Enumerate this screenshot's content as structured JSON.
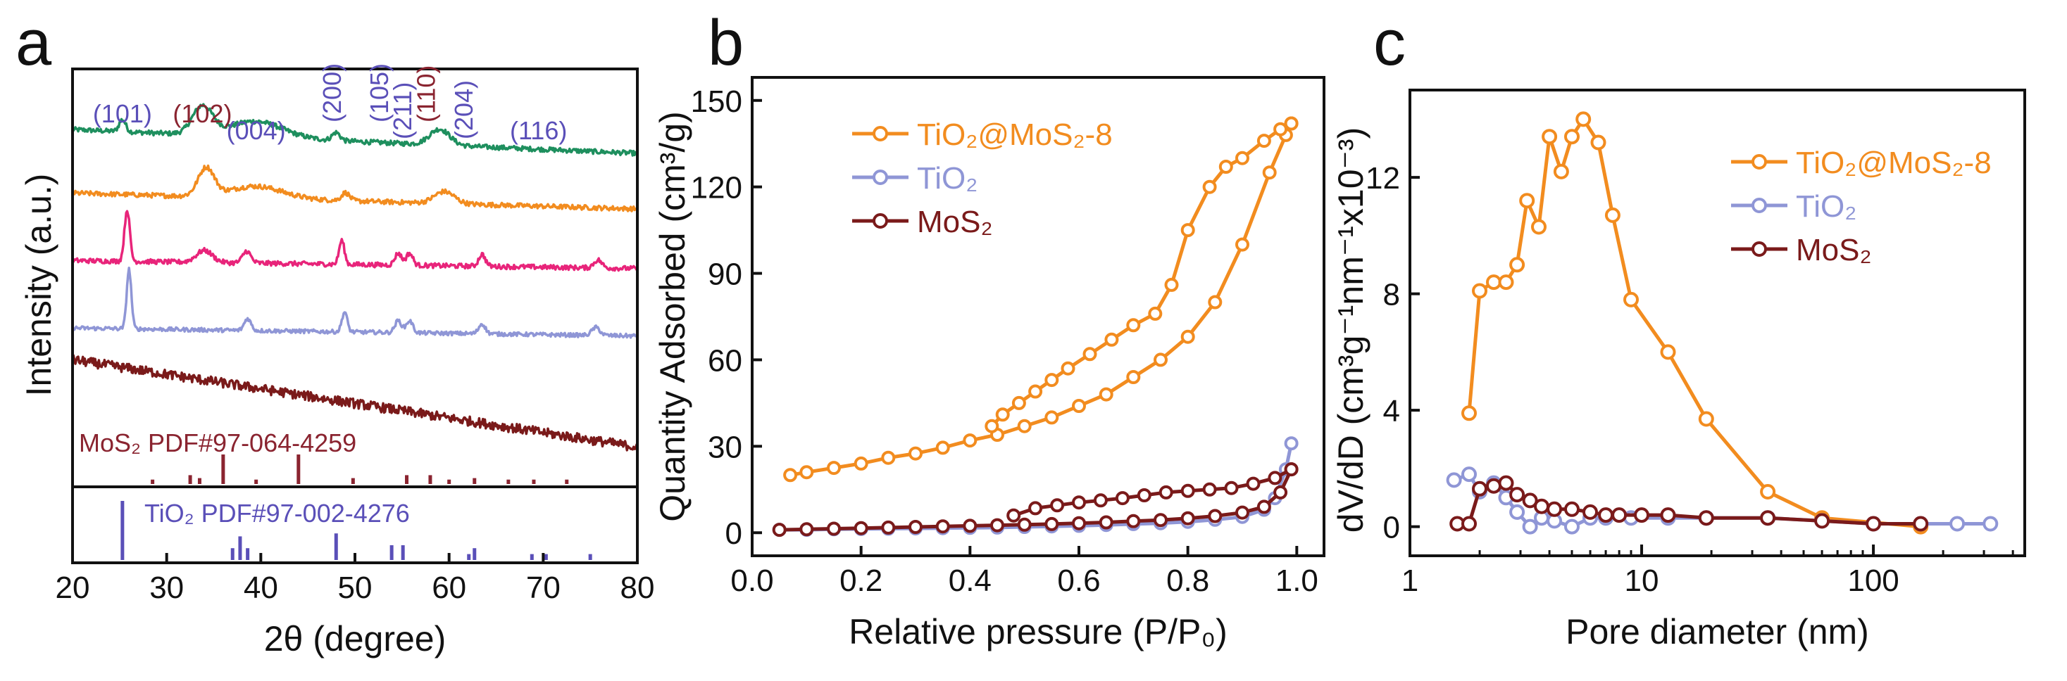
{
  "colors": {
    "orange": "#F28C1F",
    "lavender": "#8F96D6",
    "maroon": "#7A1A1A",
    "green": "#1E8F5E",
    "pink": "#E8247A",
    "indigo": "#5A4FB8",
    "darkred": "#8A2430"
  },
  "chart_data": [
    {
      "panel": "a",
      "type": "line",
      "title": "",
      "xlabel": "2θ (degree)",
      "ylabel": "Intensity (a.u.)",
      "xlim": [
        20,
        80
      ],
      "xticks": [
        "20",
        "30",
        "40",
        "50",
        "60",
        "70",
        "80"
      ],
      "series": [
        {
          "name": "green trace",
          "color": "#1E8F5E",
          "offset": 0.84,
          "peaks": [
            [
              25.3,
              0.03,
              0.5
            ],
            [
              33.8,
              0.07,
              1.5
            ],
            [
              39.5,
              0.04,
              4
            ],
            [
              48.0,
              0.02,
              0.6
            ],
            [
              59.0,
              0.04,
              1.5
            ]
          ],
          "baseline": [
            0.06,
            0.0
          ],
          "noise": 0.006
        },
        {
          "name": "orange trace",
          "color": "#F28C1F",
          "offset": 0.7,
          "peaks": [
            [
              34.2,
              0.07,
              1.2
            ],
            [
              39.5,
              0.03,
              4
            ],
            [
              49.0,
              0.02,
              0.6
            ],
            [
              59.5,
              0.03,
              1.5
            ]
          ],
          "baseline": [
            0.04,
            0.0
          ],
          "noise": 0.006
        },
        {
          "name": "pink trace",
          "color": "#E8247A",
          "offset": 0.55,
          "peaks": [
            [
              25.8,
              0.13,
              0.4
            ],
            [
              34.0,
              0.03,
              1.2
            ],
            [
              38.5,
              0.03,
              0.6
            ],
            [
              48.6,
              0.06,
              0.4
            ],
            [
              54.6,
              0.03,
              0.5
            ],
            [
              55.8,
              0.03,
              0.5
            ],
            [
              63.5,
              0.03,
              0.5
            ],
            [
              75.8,
              0.02,
              0.6
            ]
          ],
          "baseline": [
            0.02,
            0.0
          ],
          "noise": 0.006
        },
        {
          "name": "TiO2 trace",
          "color": "#8F96D6",
          "offset": 0.38,
          "peaks": [
            [
              26.0,
              0.15,
              0.35
            ],
            [
              38.6,
              0.03,
              0.5
            ],
            [
              48.9,
              0.05,
              0.4
            ],
            [
              54.6,
              0.03,
              0.5
            ],
            [
              55.8,
              0.03,
              0.5
            ],
            [
              63.5,
              0.025,
              0.5
            ],
            [
              75.6,
              0.02,
              0.6
            ]
          ],
          "baseline": [
            0.02,
            0.0
          ],
          "noise": 0.005
        },
        {
          "name": "MoS2 trace",
          "color": "#7A1A1A",
          "offset": 0.22,
          "peaks": [],
          "baseline": [
            0.1,
            -0.12
          ],
          "noise": 0.012
        }
      ],
      "peak_labels": [
        {
          "text": "(101)",
          "x": 25.3,
          "color": "#5A4FB8",
          "row": 0
        },
        {
          "text": "(102)",
          "x": 33.8,
          "color": "#8A2430",
          "row": 0
        },
        {
          "text": "(004)",
          "x": 39.5,
          "color": "#5A4FB8",
          "row": 1
        },
        {
          "text": "(200)",
          "x": 48.5,
          "color": "#5A4FB8",
          "row": 0
        },
        {
          "text": "(105)",
          "x": 53.5,
          "color": "#5A4FB8",
          "row": 0
        },
        {
          "text": "(211)",
          "x": 56.0,
          "color": "#5A4FB8",
          "row": 1
        },
        {
          "text": "(110)",
          "x": 58.5,
          "color": "#8A2430",
          "row": 0
        },
        {
          "text": "(204)",
          "x": 62.5,
          "color": "#5A4FB8",
          "row": 1
        },
        {
          "text": "(116)",
          "x": 69.5,
          "color": "#5A4FB8",
          "row": 1
        }
      ],
      "reference_mos2": {
        "label": "MoS₂ PDF#97-064-4259",
        "color": "#8A2430",
        "lines": [
          [
            28.5,
            0.15
          ],
          [
            32.5,
            0.3
          ],
          [
            33.5,
            0.2
          ],
          [
            36.0,
            1.0
          ],
          [
            39.5,
            0.15
          ],
          [
            44.0,
            1.0
          ],
          [
            49.8,
            0.2
          ],
          [
            55.5,
            0.3
          ],
          [
            58.0,
            0.3
          ],
          [
            60.0,
            0.15
          ],
          [
            62.7,
            0.2
          ],
          [
            66.3,
            0.15
          ],
          [
            69.0,
            0.15
          ],
          [
            72.5,
            0.15
          ]
        ]
      },
      "reference_tio2": {
        "label": "TiO₂ PDF#97-002-4276",
        "color": "#5A4FB8",
        "lines": [
          [
            25.3,
            1.0
          ],
          [
            37.0,
            0.2
          ],
          [
            37.8,
            0.4
          ],
          [
            38.6,
            0.2
          ],
          [
            48.0,
            0.45
          ],
          [
            53.9,
            0.25
          ],
          [
            55.1,
            0.25
          ],
          [
            62.1,
            0.1
          ],
          [
            62.7,
            0.2
          ],
          [
            68.8,
            0.1
          ],
          [
            70.3,
            0.1
          ],
          [
            75.0,
            0.1
          ]
        ]
      }
    },
    {
      "panel": "b",
      "type": "line",
      "title": "",
      "xlabel": "Relative pressure (P/P₀)",
      "ylabel": "Quantity Adsorbed (cm³/g)",
      "xlim": [
        0.0,
        1.05
      ],
      "ylim": [
        -8,
        158
      ],
      "xticks": [
        0.0,
        0.2,
        0.4,
        0.6,
        0.8,
        1.0
      ],
      "xtick_labels": [
        "0.0",
        "0.2",
        "0.4",
        "0.6",
        "0.8",
        "1.0"
      ],
      "yticks": [
        0,
        30,
        60,
        90,
        120,
        150
      ],
      "ytick_labels": [
        "0",
        "30",
        "60",
        "90",
        "120",
        "150"
      ],
      "legend": [
        "TiO₂@MoS₂-8",
        "TiO₂",
        "MoS₂"
      ],
      "series": [
        {
          "name": "TiO₂@MoS₂-8 adsorption",
          "color": "#F28C1F",
          "x": [
            0.07,
            0.1,
            0.15,
            0.2,
            0.25,
            0.3,
            0.35,
            0.4,
            0.45,
            0.5,
            0.55,
            0.6,
            0.65,
            0.7,
            0.75,
            0.8,
            0.85,
            0.9,
            0.95,
            0.98,
            0.99
          ],
          "y": [
            20,
            21,
            22.5,
            24,
            26,
            27.5,
            29.5,
            32,
            34,
            37,
            40,
            44,
            48,
            54,
            60,
            68,
            80,
            100,
            125,
            138,
            142
          ]
        },
        {
          "name": "TiO₂@MoS₂-8 desorption",
          "color": "#F28C1F",
          "x": [
            0.99,
            0.97,
            0.94,
            0.9,
            0.87,
            0.84,
            0.8,
            0.77,
            0.74,
            0.7,
            0.66,
            0.62,
            0.58,
            0.55,
            0.52,
            0.49,
            0.46,
            0.44
          ],
          "y": [
            142,
            140,
            136,
            130,
            127,
            120,
            105,
            86,
            76,
            72,
            67,
            62,
            57,
            53,
            49,
            45,
            41,
            37
          ]
        },
        {
          "name": "TiO₂",
          "color": "#8F96D6",
          "x": [
            0.05,
            0.1,
            0.15,
            0.2,
            0.25,
            0.3,
            0.35,
            0.4,
            0.45,
            0.5,
            0.55,
            0.6,
            0.65,
            0.7,
            0.75,
            0.8,
            0.85,
            0.9,
            0.94,
            0.96,
            0.98,
            0.99
          ],
          "y": [
            1,
            1,
            1.2,
            1.3,
            1.4,
            1.5,
            1.6,
            1.7,
            1.8,
            2.0,
            2.2,
            2.4,
            2.7,
            3.0,
            3.3,
            3.8,
            4.5,
            5.5,
            8,
            12,
            22,
            31
          ]
        },
        {
          "name": "MoS₂ adsorption",
          "color": "#7A1A1A",
          "x": [
            0.05,
            0.1,
            0.15,
            0.2,
            0.25,
            0.3,
            0.35,
            0.4,
            0.45,
            0.5,
            0.55,
            0.6,
            0.65,
            0.7,
            0.75,
            0.8,
            0.85,
            0.9,
            0.94,
            0.97,
            0.99
          ],
          "y": [
            1,
            1.2,
            1.4,
            1.6,
            1.8,
            2.0,
            2.2,
            2.4,
            2.6,
            2.8,
            3.0,
            3.3,
            3.6,
            4.0,
            4.4,
            5.0,
            5.8,
            7.0,
            9,
            14,
            22
          ]
        },
        {
          "name": "MoS₂ desorption",
          "color": "#7A1A1A",
          "x": [
            0.99,
            0.96,
            0.92,
            0.88,
            0.84,
            0.8,
            0.76,
            0.72,
            0.68,
            0.64,
            0.6,
            0.56,
            0.52,
            0.48
          ],
          "y": [
            22,
            19,
            17,
            15.5,
            15,
            14.5,
            14,
            13,
            12,
            11.2,
            10.5,
            9.5,
            8.5,
            6
          ]
        }
      ]
    },
    {
      "panel": "c",
      "type": "line",
      "title": "",
      "xlabel": "Pore diameter (nm)",
      "ylabel": "dV/dD (cm³g⁻¹nm⁻¹x10⁻³)",
      "xscale": "log",
      "xlim": [
        1,
        450
      ],
      "ylim": [
        -1,
        15
      ],
      "xticks": [
        1,
        10,
        100
      ],
      "xtick_labels": [
        "1",
        "10",
        "100"
      ],
      "yticks": [
        0,
        4,
        8,
        12
      ],
      "ytick_labels": [
        "0",
        "4",
        "8",
        "12"
      ],
      "legend": [
        "TiO₂@MoS₂-8",
        "TiO₂",
        "MoS₂"
      ],
      "series": [
        {
          "name": "TiO₂@MoS₂-8",
          "color": "#F28C1F",
          "x": [
            1.8,
            2.0,
            2.3,
            2.6,
            2.9,
            3.2,
            3.6,
            4.0,
            4.5,
            5.0,
            5.6,
            6.5,
            7.5,
            9.0,
            13,
            19,
            35,
            60,
            160
          ],
          "y": [
            3.9,
            8.1,
            8.4,
            8.4,
            9.0,
            11.2,
            10.3,
            13.4,
            12.2,
            13.4,
            14.0,
            13.2,
            10.7,
            7.8,
            6.0,
            3.7,
            1.2,
            0.3,
            0.0
          ]
        },
        {
          "name": "TiO₂",
          "color": "#8F96D6",
          "x": [
            1.55,
            1.8,
            2.0,
            2.3,
            2.6,
            2.9,
            3.3,
            3.7,
            4.2,
            5.0,
            6.0,
            7.0,
            9.0,
            13,
            19,
            35,
            60,
            100,
            160,
            230,
            320
          ],
          "y": [
            1.6,
            1.8,
            1.2,
            1.5,
            1.0,
            0.5,
            0.0,
            0.3,
            0.2,
            0.0,
            0.3,
            0.3,
            0.3,
            0.3,
            0.3,
            0.3,
            0.2,
            0.1,
            0.1,
            0.1,
            0.1
          ]
        },
        {
          "name": "MoS₂",
          "color": "#7A1A1A",
          "x": [
            1.6,
            1.8,
            2.0,
            2.3,
            2.6,
            2.9,
            3.3,
            3.7,
            4.2,
            5.0,
            6.0,
            7.0,
            8.0,
            10,
            13,
            19,
            35,
            60,
            100,
            160
          ],
          "y": [
            0.1,
            0.1,
            1.3,
            1.4,
            1.5,
            1.1,
            0.9,
            0.7,
            0.6,
            0.6,
            0.5,
            0.4,
            0.4,
            0.4,
            0.4,
            0.3,
            0.3,
            0.2,
            0.1,
            0.1
          ]
        }
      ]
    }
  ]
}
